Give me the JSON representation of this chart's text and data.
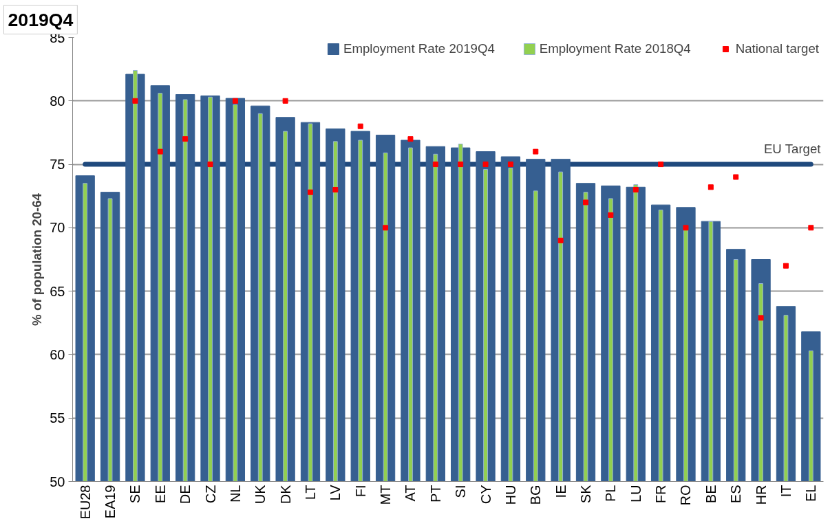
{
  "chart_data": {
    "type": "bar",
    "title": "2019Q4",
    "ylabel": "% of population 20-64",
    "categories": [
      "EU28",
      "EA19",
      "SE",
      "EE",
      "DE",
      "CZ",
      "NL",
      "UK",
      "DK",
      "LT",
      "LV",
      "FI",
      "MT",
      "AT",
      "PT",
      "SI",
      "CY",
      "HU",
      "BG",
      "IE",
      "SK",
      "PL",
      "LU",
      "FR",
      "RO",
      "BE",
      "ES",
      "HR",
      "IT",
      "EL"
    ],
    "series": [
      {
        "name": "Employment Rate 2019Q4",
        "color": "#365f91",
        "values": [
          74.1,
          72.8,
          82.1,
          81.2,
          80.5,
          80.4,
          80.2,
          79.6,
          78.7,
          78.3,
          77.8,
          77.6,
          77.3,
          76.9,
          76.4,
          76.3,
          76.0,
          75.6,
          75.4,
          75.4,
          73.5,
          73.3,
          73.2,
          71.8,
          71.6,
          70.5,
          68.3,
          67.5,
          63.8,
          61.8
        ]
      },
      {
        "name": "Employment Rate 2018Q4",
        "color": "#92d050",
        "values": [
          73.5,
          72.3,
          82.4,
          80.6,
          80.1,
          80.3,
          79.7,
          79.0,
          77.6,
          78.2,
          76.8,
          76.9,
          75.9,
          76.3,
          75.8,
          76.6,
          74.6,
          74.7,
          72.9,
          74.4,
          72.8,
          72.3,
          73.4,
          71.4,
          69.9,
          70.5,
          67.5,
          65.6,
          63.1,
          60.3
        ]
      },
      {
        "name": "National target",
        "type": "scatter",
        "marker": "square",
        "color": "#ff0000",
        "values": [
          null,
          null,
          80,
          76,
          77,
          75,
          80,
          null,
          80,
          72.8,
          73,
          78,
          70,
          77,
          75,
          75,
          75,
          75,
          76,
          69,
          72,
          71,
          73,
          75,
          70,
          73.2,
          74,
          62.9,
          67,
          70
        ]
      }
    ],
    "ylim": [
      50,
      85
    ],
    "yticks": [
      50,
      55,
      60,
      65,
      70,
      75,
      80,
      85
    ],
    "grid": "y",
    "legend": "top right",
    "ref_lines": [
      {
        "axis": "y",
        "value": 75,
        "label": "EU Target",
        "color": "#1f497d"
      }
    ]
  }
}
